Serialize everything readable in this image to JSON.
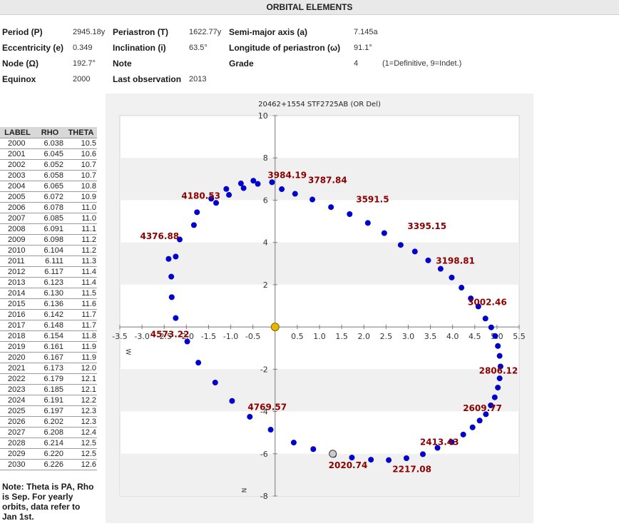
{
  "page_title": "ORBITAL ELEMENTS",
  "elements": [
    {
      "label": "Period (P)",
      "value": "2945.18y"
    },
    {
      "label": "Periastron (T)",
      "value": "1622.77y"
    },
    {
      "label": "Semi-major axis (a)",
      "value": "7.145a"
    },
    {
      "label": "Eccentricity (e)",
      "value": "0.349"
    },
    {
      "label": "Inclination (i)",
      "value": "63.5°"
    },
    {
      "label": "Longitude of periastron (ω)",
      "value": "91.1°"
    },
    {
      "label": "Node (Ω)",
      "value": "192.7°"
    },
    {
      "label": "Note",
      "value": ""
    },
    {
      "label": "Grade",
      "value": "4"
    },
    {
      "label": "Equinox",
      "value": "2000"
    },
    {
      "label": "Last observation",
      "value": "2013"
    }
  ],
  "grade_note": "(1=Definitive, 9=Indet.)",
  "observations": {
    "headers": [
      "LABEL",
      "RHO",
      "THETA"
    ],
    "rows": [
      [
        "2000",
        "6.038",
        "10.5"
      ],
      [
        "2001",
        "6.045",
        "10.6"
      ],
      [
        "2002",
        "6.052",
        "10.7"
      ],
      [
        "2003",
        "6.058",
        "10.7"
      ],
      [
        "2004",
        "6.065",
        "10.8"
      ],
      [
        "2005",
        "6.072",
        "10.9"
      ],
      [
        "2006",
        "6.078",
        "11.0"
      ],
      [
        "2007",
        "6.085",
        "11.0"
      ],
      [
        "2008",
        "6.091",
        "11.1"
      ],
      [
        "2009",
        "6.098",
        "11.2"
      ],
      [
        "2010",
        "6.104",
        "11.2"
      ],
      [
        "2011",
        "6.111",
        "11.3"
      ],
      [
        "2012",
        "6.117",
        "11.4"
      ],
      [
        "2013",
        "6.123",
        "11.4"
      ],
      [
        "2014",
        "6.130",
        "11.5"
      ],
      [
        "2015",
        "6.136",
        "11.6"
      ],
      [
        "2016",
        "6.142",
        "11.7"
      ],
      [
        "2017",
        "6.148",
        "11.7"
      ],
      [
        "2018",
        "6.154",
        "11.8"
      ],
      [
        "2019",
        "6.161",
        "11.9"
      ],
      [
        "2020",
        "6.167",
        "11.9"
      ],
      [
        "2021",
        "6.173",
        "12.0"
      ],
      [
        "2022",
        "6.179",
        "12.1"
      ],
      [
        "2023",
        "6.185",
        "12.1"
      ],
      [
        "2024",
        "6.191",
        "12.2"
      ],
      [
        "2025",
        "6.197",
        "12.3"
      ],
      [
        "2026",
        "6.202",
        "12.3"
      ],
      [
        "2027",
        "6.208",
        "12.4"
      ],
      [
        "2028",
        "6.214",
        "12.5"
      ],
      [
        "2029",
        "6.220",
        "12.5"
      ],
      [
        "2030",
        "6.226",
        "12.6"
      ]
    ]
  },
  "note_text": "Note: Theta is PA, Rho is Sep. For yearly orbits, data refer to Jan 1st.",
  "chart_data": {
    "type": "scatter",
    "title": "20462+1554 STF2725AB (OR Del)",
    "xlim": [
      -3.5,
      5.5
    ],
    "ylim": [
      -8,
      10
    ],
    "x_ticks": [
      -3.5,
      -3.0,
      -2.5,
      -2.0,
      -1.5,
      -1.0,
      -0.5,
      0.5,
      1.0,
      1.5,
      2.0,
      2.5,
      3.0,
      3.5,
      4.0,
      4.5,
      5.0,
      5.5
    ],
    "x_tick_labels": [
      "-3.5",
      "-3.0",
      "-2.5",
      "-2.0",
      "-1.5",
      "-1.0",
      "-0.5",
      "0.5",
      "1.0",
      "1.5",
      "2.0",
      "2.5",
      "3.0",
      "3.5",
      "4.0",
      "4.5",
      "5.0",
      "5.5"
    ],
    "y_ticks": [
      10,
      8,
      6,
      4,
      2,
      -2,
      -4,
      -6,
      -8
    ],
    "y_tick_labels": [
      "10",
      "8",
      "6",
      "4",
      "2",
      "-2",
      "-4",
      "-6",
      "-8"
    ],
    "direction_labels": {
      "east": "W",
      "north": "N"
    },
    "primary": [
      0,
      0
    ],
    "colors": {
      "orbit": "#0000cc",
      "labels": "#8b0000",
      "primary": "#e6b800",
      "current": "#cccccc",
      "band": "#f0f0f0"
    },
    "orbit_points": [
      [
        -0.07,
        6.85
      ],
      [
        -0.39,
        6.77
      ],
      [
        -0.71,
        6.57
      ],
      [
        -1.04,
        6.25
      ],
      [
        -1.33,
        5.87
      ],
      [
        -1.83,
        4.82
      ],
      [
        -2.24,
        3.33
      ],
      [
        -2.34,
        2.38
      ],
      [
        -2.33,
        1.41
      ],
      [
        -2.24,
        0.42
      ],
      [
        -1.98,
        -0.69
      ],
      [
        -1.73,
        -1.69
      ],
      [
        -1.35,
        -2.63
      ],
      [
        -0.97,
        -3.5
      ],
      [
        -0.57,
        -4.25
      ],
      [
        -0.1,
        -4.86
      ],
      [
        0.42,
        -5.47
      ],
      [
        0.86,
        -5.78
      ],
      [
        1.32,
        -6.05
      ],
      [
        1.73,
        -6.18
      ],
      [
        2.16,
        -6.28
      ],
      [
        2.56,
        -6.3
      ],
      [
        2.96,
        -6.21
      ],
      [
        3.33,
        -6.02
      ],
      [
        3.66,
        -5.72
      ],
      [
        3.98,
        -5.45
      ],
      [
        4.24,
        -5.09
      ],
      [
        4.45,
        -4.75
      ],
      [
        4.61,
        -4.43
      ],
      [
        4.75,
        -4.13
      ],
      [
        4.86,
        -3.71
      ],
      [
        4.95,
        -3.33
      ],
      [
        5.02,
        -2.87
      ],
      [
        5.06,
        -2.43
      ],
      [
        5.08,
        -1.87
      ],
      [
        5.06,
        -1.37
      ],
      [
        5.02,
        -0.9
      ],
      [
        4.96,
        -0.43
      ],
      [
        4.87,
        -0.02
      ],
      [
        4.74,
        0.4
      ],
      [
        4.58,
        0.97
      ],
      [
        4.41,
        1.35
      ],
      [
        4.2,
        1.86
      ],
      [
        3.98,
        2.34
      ],
      [
        3.73,
        2.75
      ],
      [
        3.45,
        3.15
      ],
      [
        3.15,
        3.57
      ],
      [
        2.83,
        3.88
      ],
      [
        2.46,
        4.44
      ],
      [
        2.09,
        4.92
      ],
      [
        1.68,
        5.34
      ],
      [
        1.26,
        5.67
      ],
      [
        0.84,
        6.03
      ],
      [
        0.45,
        6.3
      ],
      [
        0.15,
        6.52
      ],
      [
        -0.49,
        6.92
      ],
      [
        -0.77,
        6.79
      ],
      [
        -1.1,
        6.53
      ],
      [
        -1.44,
        6.07
      ],
      [
        -1.76,
        5.43
      ],
      [
        -2.15,
        4.14
      ],
      [
        -2.4,
        3.22
      ]
    ],
    "current_position": [
      1.3,
      -6.0
    ],
    "time_labels": [
      {
        "text": "4180.53",
        "x": -1.33,
        "y": 5.87
      },
      {
        "text": "3984.19",
        "x": -0.07,
        "y": 6.85
      },
      {
        "text": "3787.84",
        "x": 0.84,
        "y": 6.6
      },
      {
        "text": "3591.5",
        "x": 1.92,
        "y": 5.7
      },
      {
        "text": "3395.15",
        "x": 3.08,
        "y": 4.43
      },
      {
        "text": "3198.81",
        "x": 3.72,
        "y": 2.79
      },
      {
        "text": "3002.46",
        "x": 4.44,
        "y": 0.83
      },
      {
        "text": "4376.88",
        "x": -2.26,
        "y": 3.95
      },
      {
        "text": "4573.22",
        "x": -2.03,
        "y": -0.69
      },
      {
        "text": "2806.12",
        "x": 4.69,
        "y": -2.41
      },
      {
        "text": "2609.77",
        "x": 4.33,
        "y": -4.18
      },
      {
        "text": "4769.57",
        "x": -0.52,
        "y": -4.14
      },
      {
        "text": "2413.43",
        "x": 3.36,
        "y": -5.79
      },
      {
        "text": "2020.74",
        "x": 1.3,
        "y": -6.0
      },
      {
        "text": "2217.08",
        "x": 2.74,
        "y": -6.2
      }
    ]
  }
}
